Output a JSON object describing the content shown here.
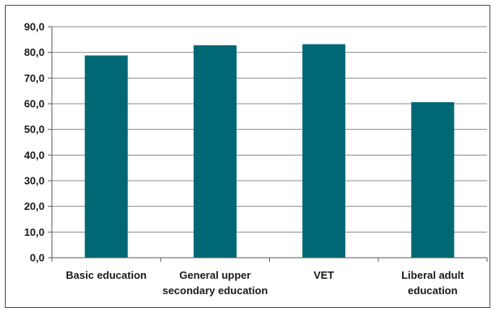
{
  "colors": {
    "bar": "#006874",
    "gridline": "#8c8c8c",
    "axis": "#5a5a5a",
    "frame": "#4d4d4d"
  },
  "chart_data": {
    "type": "bar",
    "title": "",
    "xlabel": "",
    "ylabel": "",
    "categories": [
      [
        "Basic education"
      ],
      [
        "General upper",
        "secondary education"
      ],
      [
        "VET"
      ],
      [
        "Liberal adult",
        "education"
      ]
    ],
    "values": [
      78.8,
      82.8,
      83.2,
      60.6
    ],
    "ylim": [
      0,
      90
    ],
    "ytick_step": 10,
    "ytick_labels": [
      "0,0",
      "10,0",
      "20,0",
      "30,0",
      "40,0",
      "50,0",
      "60,0",
      "70,0",
      "80,0",
      "90,0"
    ],
    "grid": true,
    "legend": "none"
  }
}
